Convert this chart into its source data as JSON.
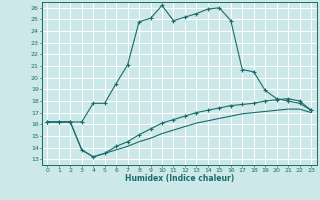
{
  "title": "",
  "xlabel": "Humidex (Indice chaleur)",
  "bg_color": "#cce8e8",
  "line_color": "#1a6b6b",
  "grid_color": "#ffffff",
  "xlim": [
    -0.5,
    23.5
  ],
  "ylim": [
    12.5,
    26.5
  ],
  "xticks": [
    0,
    1,
    2,
    3,
    4,
    5,
    6,
    7,
    8,
    9,
    10,
    11,
    12,
    13,
    14,
    15,
    16,
    17,
    18,
    19,
    20,
    21,
    22,
    23
  ],
  "yticks": [
    13,
    14,
    15,
    16,
    17,
    18,
    19,
    20,
    21,
    22,
    23,
    24,
    25,
    26
  ],
  "line1_x": [
    0,
    1,
    2,
    3,
    4,
    5,
    6,
    7,
    8,
    9,
    10,
    11,
    12,
    13,
    14,
    15,
    16,
    17,
    18,
    19,
    20,
    21,
    22,
    23
  ],
  "line1_y": [
    16.2,
    16.2,
    16.2,
    16.2,
    17.8,
    17.8,
    19.5,
    21.1,
    24.8,
    25.1,
    26.2,
    24.9,
    25.2,
    25.5,
    25.9,
    26.0,
    24.9,
    20.7,
    20.5,
    18.9,
    18.2,
    18.0,
    17.8,
    17.2
  ],
  "line2_x": [
    0,
    1,
    2,
    3,
    4,
    5,
    6,
    7,
    8,
    9,
    10,
    11,
    12,
    13,
    14,
    15,
    16,
    17,
    18,
    19,
    20,
    21,
    22,
    23
  ],
  "line2_y": [
    16.2,
    16.2,
    16.2,
    13.8,
    13.2,
    13.5,
    14.1,
    14.5,
    15.1,
    15.6,
    16.1,
    16.4,
    16.7,
    17.0,
    17.2,
    17.4,
    17.6,
    17.7,
    17.8,
    18.0,
    18.1,
    18.2,
    18.0,
    17.2
  ],
  "line3_x": [
    0,
    1,
    2,
    3,
    4,
    5,
    6,
    7,
    8,
    9,
    10,
    11,
    12,
    13,
    14,
    15,
    16,
    17,
    18,
    19,
    20,
    21,
    22,
    23
  ],
  "line3_y": [
    16.2,
    16.2,
    16.2,
    13.8,
    13.2,
    13.5,
    13.8,
    14.1,
    14.5,
    14.8,
    15.2,
    15.5,
    15.8,
    16.1,
    16.3,
    16.5,
    16.7,
    16.9,
    17.0,
    17.1,
    17.2,
    17.3,
    17.3,
    17.0
  ]
}
